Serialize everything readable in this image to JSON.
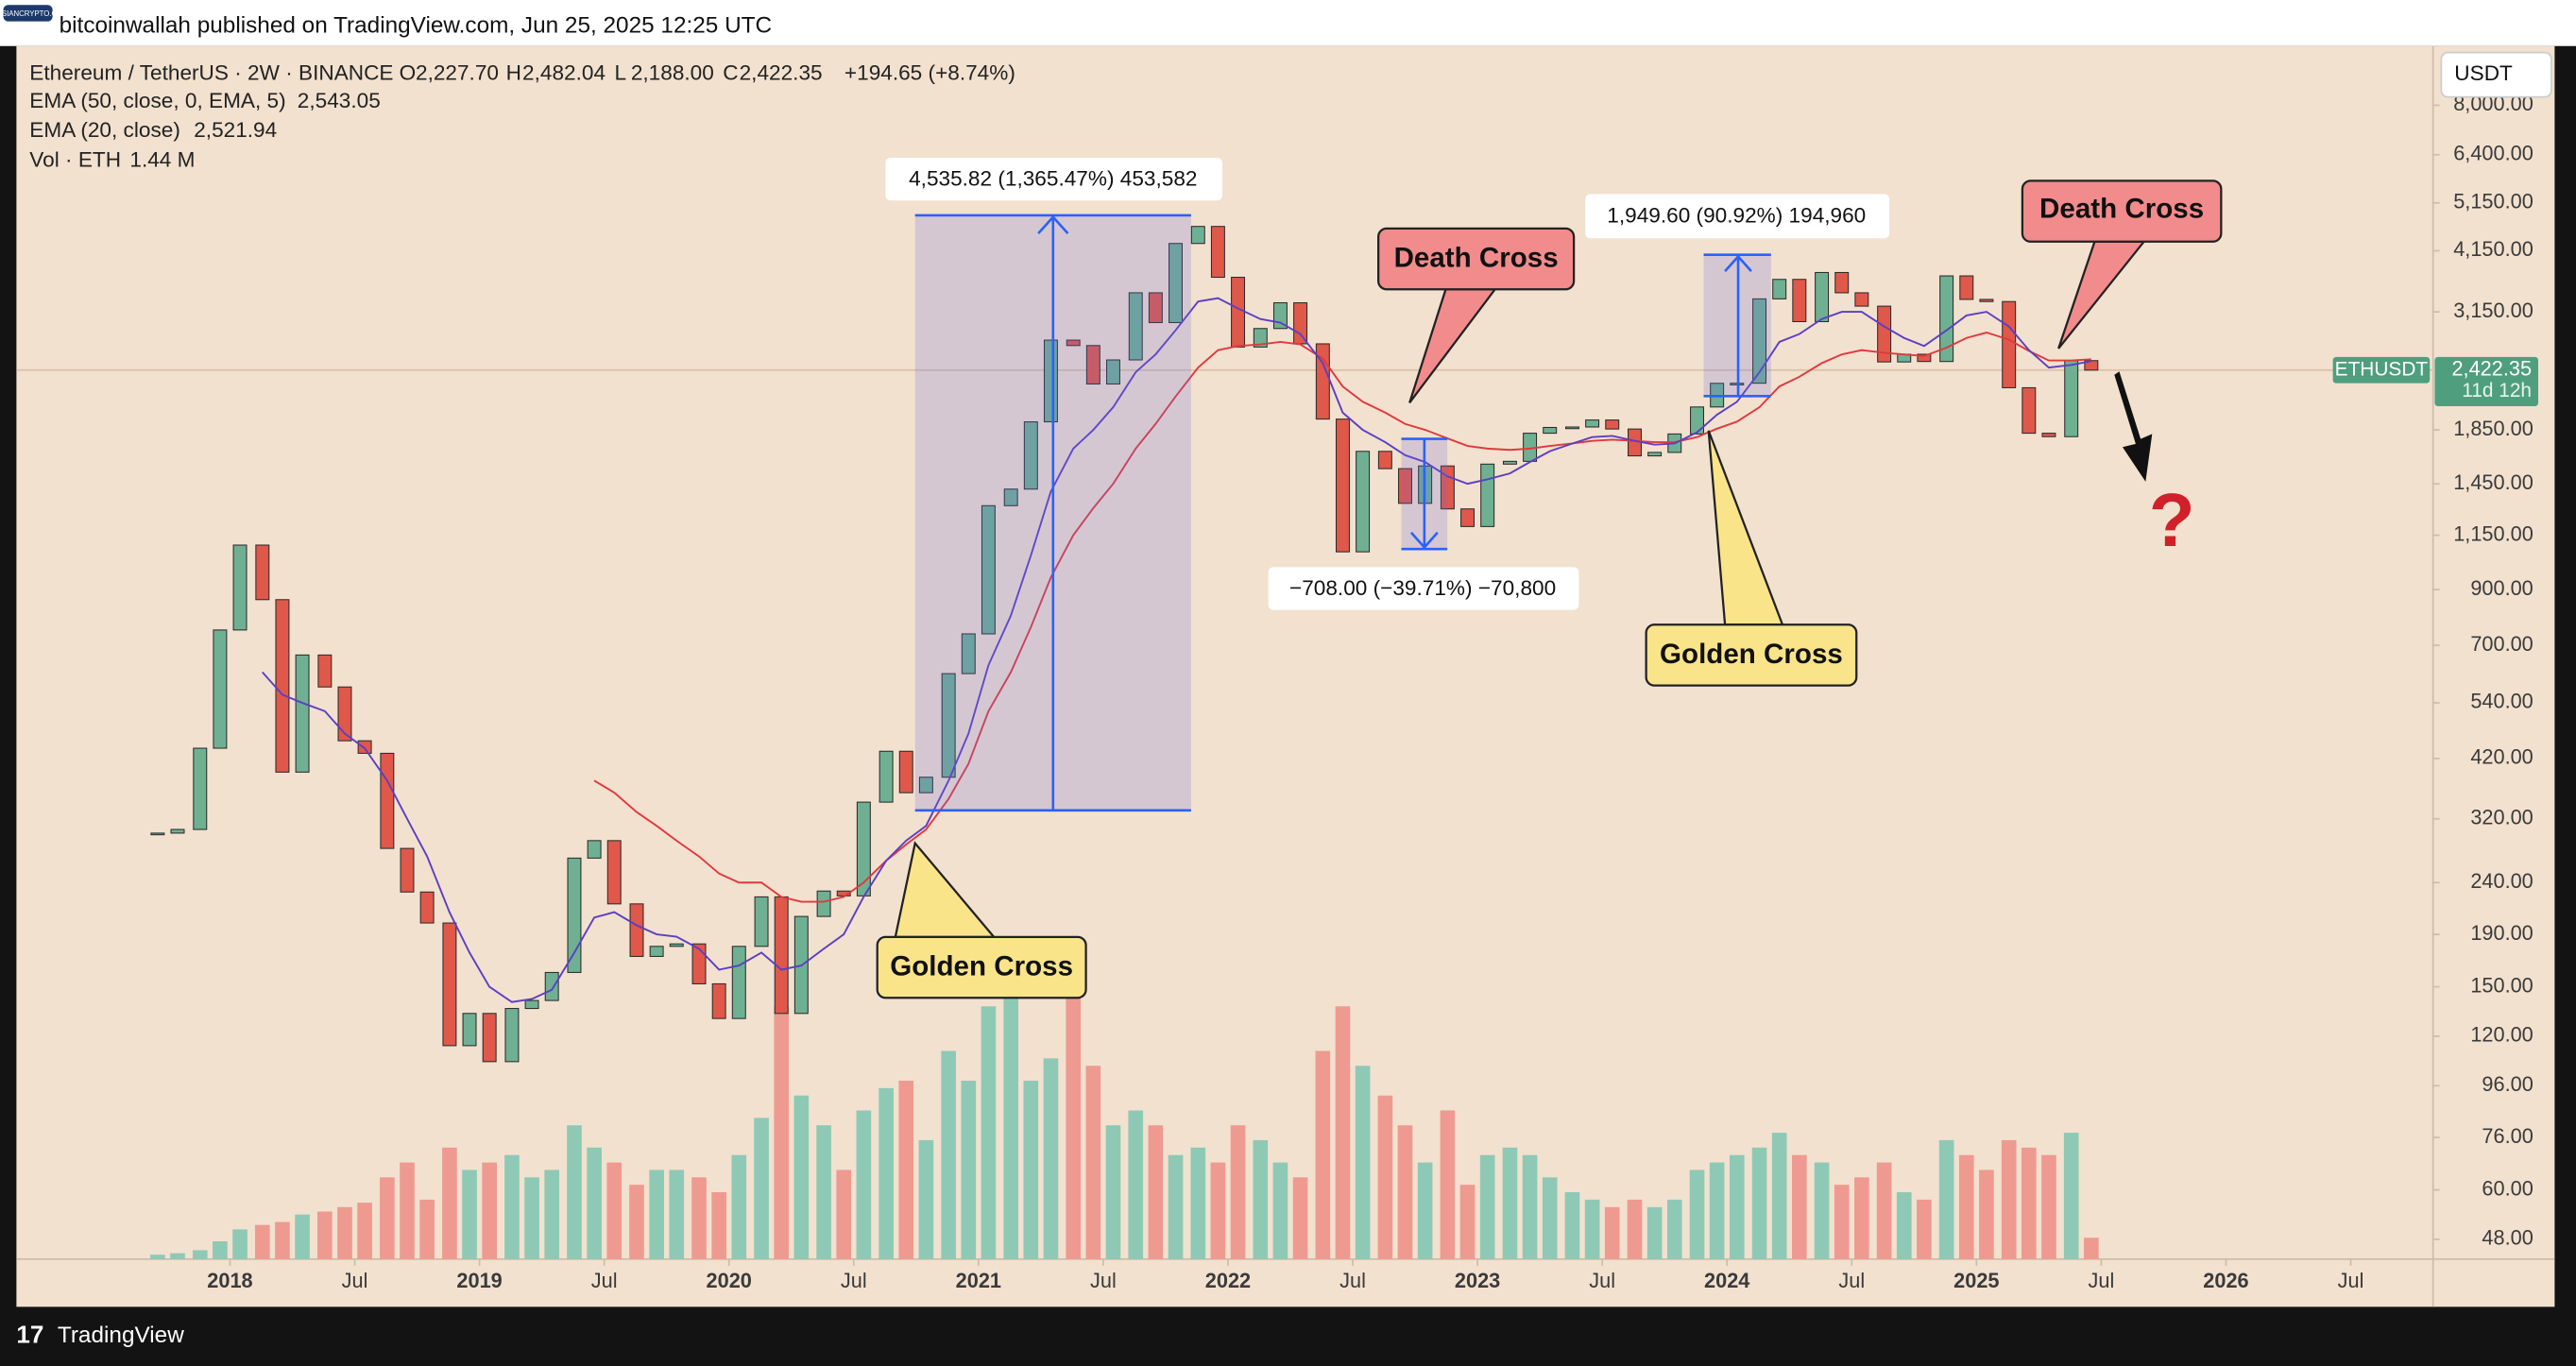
{
  "header": {
    "watermark": "PARSIANCRYPTO.COM",
    "published": "bitcoinwallah published on TradingView.com, Jun 25, 2025 12:25 UTC",
    "currency": "USDT"
  },
  "footer": {
    "icon": "17",
    "brand": "TradingView"
  },
  "annotations": {
    "measures": [
      "4,535.82 (1,365.47%) 453,582",
      "1,949.60 (90.92%) 194,960",
      "−708.00 (−39.71%) −70,800"
    ],
    "callouts": [
      "Golden Cross",
      "Death Cross",
      "Golden Cross",
      "Death Cross"
    ],
    "question": "?"
  },
  "chart_data": {
    "type": "candlestick",
    "log_scale": true,
    "grid": false,
    "xlim": [
      2017.144,
      2026.83
    ],
    "ylim": [
      43.9,
      10450
    ],
    "xticks": [
      {
        "value": 2018,
        "label": "2018"
      },
      {
        "value": 2018.5,
        "label": "Jul"
      },
      {
        "value": 2019,
        "label": "2019"
      },
      {
        "value": 2019.5,
        "label": "Jul"
      },
      {
        "value": 2020,
        "label": "2020"
      },
      {
        "value": 2020.5,
        "label": "Jul"
      },
      {
        "value": 2021,
        "label": "2021"
      },
      {
        "value": 2021.5,
        "label": "Jul"
      },
      {
        "value": 2022,
        "label": "2022"
      },
      {
        "value": 2022.5,
        "label": "Jul"
      },
      {
        "value": 2023,
        "label": "2023"
      },
      {
        "value": 2023.5,
        "label": "Jul"
      },
      {
        "value": 2024,
        "label": "2024"
      },
      {
        "value": 2024.5,
        "label": "Jul"
      },
      {
        "value": 2025,
        "label": "2025"
      },
      {
        "value": 2025.5,
        "label": "Jul"
      },
      {
        "value": 2026,
        "label": "2026"
      },
      {
        "value": 2026.5,
        "label": "Jul"
      }
    ],
    "yticks": [
      {
        "value": 48,
        "label": "48.00"
      },
      {
        "value": 60,
        "label": "60.00"
      },
      {
        "value": 76,
        "label": "76.00"
      },
      {
        "value": 96,
        "label": "96.00"
      },
      {
        "value": 120,
        "label": "120.00"
      },
      {
        "value": 150,
        "label": "150.00"
      },
      {
        "value": 190,
        "label": "190.00"
      },
      {
        "value": 240,
        "label": "240.00"
      },
      {
        "value": 320,
        "label": "320.00"
      },
      {
        "value": 420,
        "label": "420.00"
      },
      {
        "value": 540,
        "label": "540.00"
      },
      {
        "value": 700,
        "label": "700.00"
      },
      {
        "value": 900,
        "label": "900.00"
      },
      {
        "value": 1150,
        "label": "1,150.00"
      },
      {
        "value": 1450,
        "label": "1,450.00"
      },
      {
        "value": 1850,
        "label": "1,850.00"
      },
      {
        "value": 3150,
        "label": "3,150.00"
      },
      {
        "value": 4150,
        "label": "4,150.00"
      },
      {
        "value": 5150,
        "label": "5,150.00"
      },
      {
        "value": 6400,
        "label": "6,400.00"
      },
      {
        "value": 8000,
        "label": "8,000.00"
      }
    ],
    "x": [
      2017.71,
      2017.79,
      2017.88,
      2017.96,
      2018.04,
      2018.13,
      2018.21,
      2018.29,
      2018.38,
      2018.46,
      2018.54,
      2018.63,
      2018.71,
      2018.79,
      2018.88,
      2018.96,
      2019.04,
      2019.13,
      2019.21,
      2019.29,
      2019.38,
      2019.46,
      2019.54,
      2019.63,
      2019.71,
      2019.79,
      2019.88,
      2019.96,
      2020.04,
      2020.13,
      2020.21,
      2020.29,
      2020.38,
      2020.46,
      2020.54,
      2020.63,
      2020.71,
      2020.79,
      2020.88,
      2020.96,
      2021.04,
      2021.13,
      2021.21,
      2021.29,
      2021.38,
      2021.46,
      2021.54,
      2021.63,
      2021.71,
      2021.79,
      2021.88,
      2021.96,
      2022.04,
      2022.13,
      2022.21,
      2022.29,
      2022.38,
      2022.46,
      2022.54,
      2022.63,
      2022.71,
      2022.79,
      2022.88,
      2022.96,
      2023.04,
      2023.13,
      2023.21,
      2023.29,
      2023.38,
      2023.46,
      2023.54,
      2023.63,
      2023.71,
      2023.79,
      2023.88,
      2023.96,
      2024.04,
      2024.13,
      2024.21,
      2024.29,
      2024.38,
      2024.46,
      2024.54,
      2024.63,
      2024.71,
      2024.79,
      2024.88,
      2024.96,
      2025.04,
      2025.13,
      2025.21,
      2025.29,
      2025.38,
      2025.46
    ],
    "price": {
      "name": "Ethereum / TetherUS · 2W · BINANCE",
      "up_color": "#6fb093",
      "down_color": "#e0584a",
      "ohlc_labels": [
        {
          "key": "O",
          "value": "2,227.70"
        },
        {
          "key": "H",
          "value": "2,482.04"
        },
        {
          "key": "L",
          "value": "2,188.00"
        },
        {
          "key": "C",
          "value": "2,422.35"
        }
      ],
      "change": "+194.65 (+8.74%)",
      "close": [
        300,
        305,
        440,
        750,
        1100,
        860,
        395,
        670,
        580,
        455,
        430,
        280,
        230,
        200,
        115,
        133,
        107,
        136,
        141,
        160,
        268,
        290,
        218,
        172,
        180,
        182,
        152,
        130,
        180,
        225,
        133,
        206,
        231,
        226,
        345,
        434,
        360,
        386,
        616,
        737,
        1314,
        1416,
        1918,
        2773,
        2706,
        2275,
        2536,
        3433,
        3001,
        4288,
        4631,
        3682,
        2688,
        2922,
        3282,
        2727,
        1942,
        1067,
        1679,
        1553,
        1328,
        1572,
        1295,
        1196,
        1585,
        1605,
        1822,
        1870,
        1874,
        1934,
        1857,
        1645,
        1671,
        1816,
        2051,
        2282,
        2283,
        3340,
        3647,
        3014,
        3762,
        3433,
        3232,
        2513,
        2602,
        2518,
        3705,
        3332,
        3300,
        2237,
        1822,
        1794,
        2528,
        2422
      ]
    },
    "last_price": {
      "name": "ETHUSDT",
      "value": 2422.35,
      "label": "2,422.35",
      "countdown": "11d 12h",
      "color": "#4f9f7e"
    },
    "series": [
      {
        "name": "EMA (50, close, 0, EMA, 5)",
        "color": "#e0393e",
        "last_label": "2,543.05",
        "values": [
          null,
          null,
          null,
          null,
          null,
          null,
          null,
          null,
          null,
          null,
          null,
          null,
          null,
          null,
          null,
          null,
          null,
          null,
          null,
          null,
          null,
          380,
          360,
          330,
          310,
          290,
          270,
          250,
          240,
          240,
          225,
          220,
          220,
          225,
          240,
          265,
          285,
          305,
          350,
          410,
          520,
          620,
          760,
          950,
          1150,
          1300,
          1450,
          1700,
          1900,
          2150,
          2450,
          2650,
          2700,
          2720,
          2750,
          2720,
          2550,
          2250,
          2100,
          2000,
          1900,
          1850,
          1780,
          1720,
          1700,
          1690,
          1700,
          1720,
          1740,
          1760,
          1770,
          1760,
          1750,
          1750,
          1790,
          1860,
          1920,
          2050,
          2250,
          2350,
          2500,
          2600,
          2650,
          2620,
          2600,
          2580,
          2680,
          2800,
          2870,
          2780,
          2640,
          2530,
          2530,
          2543
        ]
      },
      {
        "name": "EMA (20, close)",
        "color": "#5b3fc4",
        "last_label": "2,521.94",
        "values": [
          null,
          null,
          null,
          null,
          null,
          620,
          560,
          540,
          520,
          470,
          440,
          380,
          320,
          270,
          210,
          175,
          150,
          140,
          142,
          148,
          175,
          205,
          210,
          198,
          190,
          188,
          178,
          162,
          165,
          175,
          162,
          165,
          178,
          190,
          225,
          265,
          290,
          310,
          380,
          470,
          640,
          800,
          1050,
          1400,
          1700,
          1850,
          2050,
          2400,
          2600,
          2900,
          3300,
          3350,
          3200,
          3050,
          3000,
          2850,
          2500,
          2000,
          1850,
          1750,
          1650,
          1600,
          1500,
          1450,
          1480,
          1520,
          1600,
          1680,
          1740,
          1790,
          1800,
          1760,
          1730,
          1740,
          1830,
          1980,
          2100,
          2400,
          2750,
          2850,
          3050,
          3150,
          3150,
          2950,
          2800,
          2700,
          2900,
          3100,
          3150,
          2950,
          2650,
          2450,
          2480,
          2522
        ]
      }
    ],
    "volume": {
      "name": "Vol · ETH",
      "last_label": "1.44 M",
      "color": "#26a69a",
      "up_color": "#8ec9b6",
      "down_color": "#ef9a90",
      "values": [
        0.3,
        0.4,
        0.6,
        1.2,
        2.0,
        2.3,
        2.5,
        3.0,
        3.2,
        3.5,
        3.8,
        5.5,
        6.5,
        4.0,
        7.5,
        6.0,
        6.5,
        7.0,
        5.5,
        6.0,
        9.0,
        7.5,
        6.5,
        5.0,
        6.0,
        6.0,
        5.5,
        4.5,
        7.0,
        9.5,
        17.0,
        11.0,
        9.0,
        6.0,
        10.0,
        11.5,
        12.0,
        8.0,
        14.0,
        12.0,
        17.0,
        20.0,
        12.0,
        13.5,
        21.0,
        13.0,
        9.0,
        10.0,
        9.0,
        7.0,
        7.5,
        6.5,
        9.0,
        8.0,
        6.5,
        5.5,
        14.0,
        17.0,
        13.0,
        11.0,
        9.0,
        6.5,
        10.0,
        5.0,
        7.0,
        7.5,
        7.0,
        5.5,
        4.5,
        4.0,
        3.5,
        4.0,
        3.5,
        4.0,
        6.0,
        6.5,
        7.0,
        7.5,
        8.5,
        7.0,
        6.5,
        5.0,
        5.5,
        6.5,
        4.5,
        4.0,
        8.0,
        7.0,
        6.0,
        8.0,
        7.5,
        7.0,
        8.5,
        1.44
      ]
    }
  }
}
